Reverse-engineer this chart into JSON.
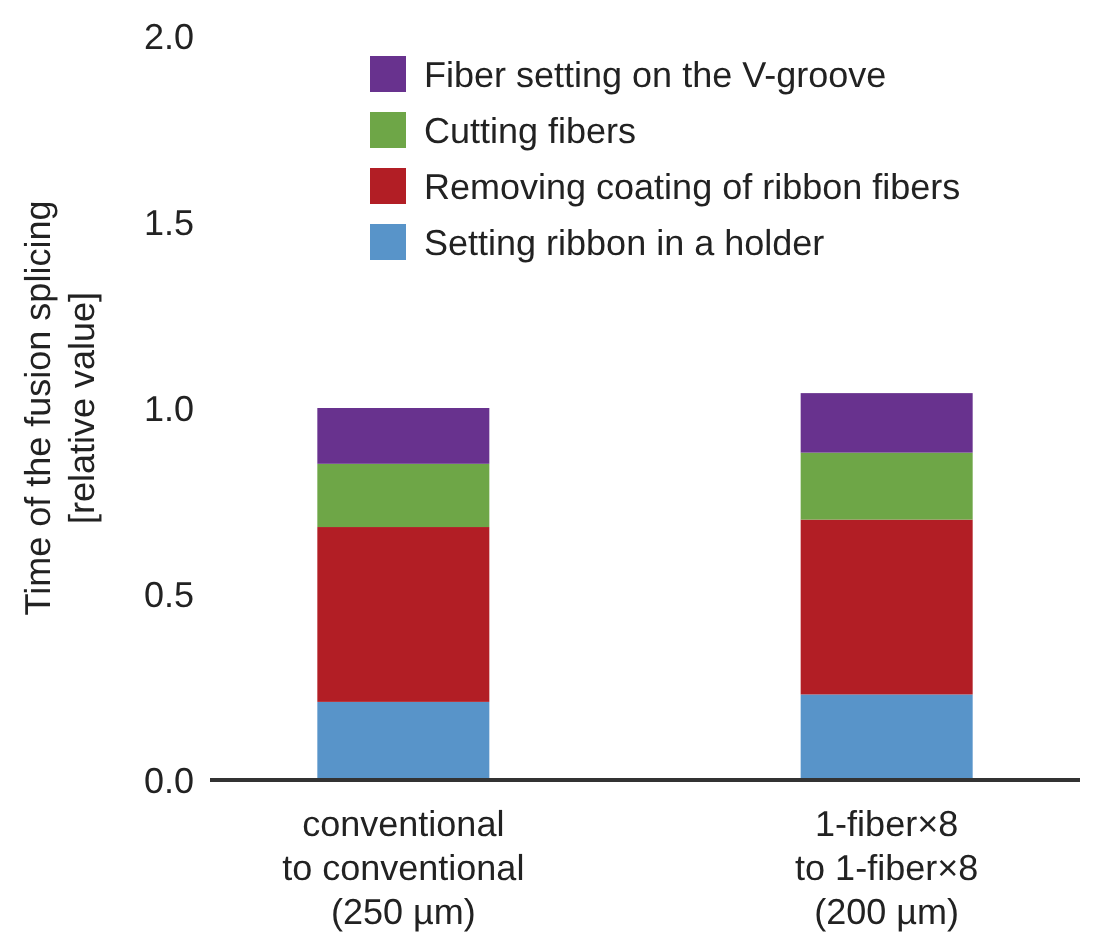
{
  "chart_data": {
    "type": "bar",
    "stacked": true,
    "ylabel": "Time of the fusion splicing\n[relative value]",
    "categories": [
      "conventional\nto conventional\n(250 µm)",
      "1-fiber×8\nto 1-fiber×8\n(200 µm)"
    ],
    "series": [
      {
        "name": "Setting ribbon in a holder",
        "color": "#5894c9",
        "values": [
          0.21,
          0.23
        ]
      },
      {
        "name": "Removing coating of ribbon fibers",
        "color": "#b21e25",
        "values": [
          0.47,
          0.47
        ]
      },
      {
        "name": "Cutting fibers",
        "color": "#6ea647",
        "values": [
          0.17,
          0.18
        ]
      },
      {
        "name": "Fiber setting on the V-groove",
        "color": "#68328e",
        "values": [
          0.15,
          0.16
        ]
      }
    ],
    "ylim": [
      0,
      2.0
    ],
    "yticks": [
      {
        "value": 0,
        "label": "0.0"
      },
      {
        "value": 0.5,
        "label": "0.5"
      },
      {
        "value": 1,
        "label": "1.0"
      },
      {
        "value": 1.5,
        "label": "1.5"
      },
      {
        "value": 2,
        "label": "2.0"
      }
    ],
    "grid": false,
    "legend": "top right"
  }
}
